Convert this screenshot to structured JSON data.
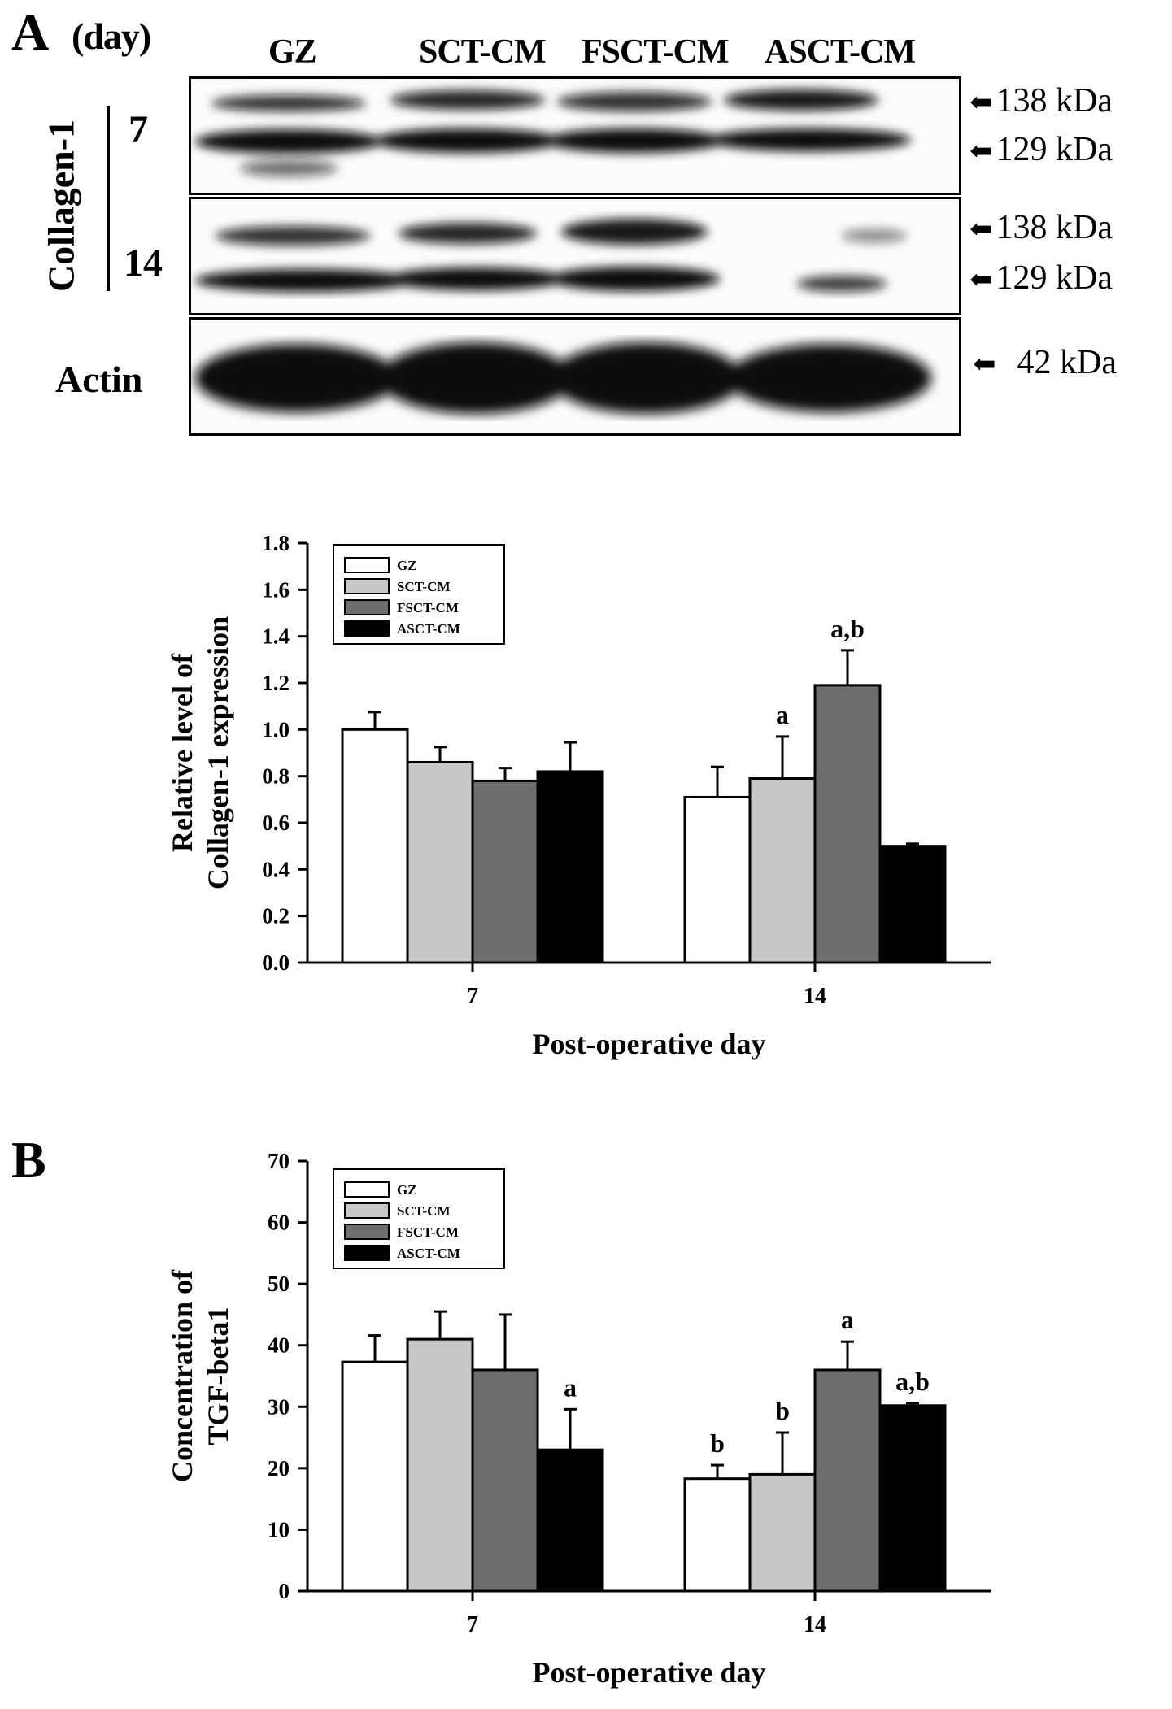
{
  "figure": {
    "panel_a_letter": "A",
    "panel_b_letter": "B",
    "day_header": "(day)",
    "lanes": [
      "GZ",
      "SCT-CM",
      "FSCT-CM",
      "ASCT-CM"
    ],
    "protein_label": "Collagen-1",
    "day_labels": [
      "7",
      "14"
    ],
    "actin_label": "Actin",
    "markers": {
      "m138": "138 kDa",
      "m129": "129 kDa",
      "m42": "42 kDa"
    }
  },
  "chart_data": [
    {
      "type": "bar",
      "categories": [
        "7",
        "14"
      ],
      "series": [
        {
          "name": "GZ",
          "color": "#ffffff",
          "values": [
            1.0,
            0.71
          ],
          "errors": [
            0.075,
            0.13
          ]
        },
        {
          "name": "SCT-CM",
          "color": "#c8c8c8",
          "values": [
            0.86,
            0.79
          ],
          "errors": [
            0.065,
            0.18
          ]
        },
        {
          "name": "FSCT-CM",
          "color": "#6e6e6e",
          "values": [
            0.78,
            1.19
          ],
          "errors": [
            0.055,
            0.15
          ]
        },
        {
          "name": "ASCT-CM",
          "color": "#000000",
          "values": [
            0.82,
            0.5
          ],
          "errors": [
            0.125,
            0.01
          ]
        }
      ],
      "annotations": [
        {
          "category": "14",
          "series": "SCT-CM",
          "text": "a"
        },
        {
          "category": "14",
          "series": "FSCT-CM",
          "text": "a,b"
        }
      ],
      "xlabel": "Post-operative day",
      "ylabel": [
        "Relative level of",
        "Collagen-1 expression"
      ],
      "ylim": [
        0,
        1.8
      ],
      "yticks": [
        "0.0",
        "0.2",
        "0.4",
        "0.6",
        "0.8",
        "1.0",
        "1.2",
        "1.4",
        "1.6",
        "1.8"
      ],
      "legend_position": "top-left"
    },
    {
      "type": "bar",
      "categories": [
        "7",
        "14"
      ],
      "series": [
        {
          "name": "GZ",
          "color": "#ffffff",
          "values": [
            37.3,
            18.3
          ],
          "errors": [
            4.3,
            2.2
          ]
        },
        {
          "name": "SCT-CM",
          "color": "#c8c8c8",
          "values": [
            41.0,
            19.0
          ],
          "errors": [
            4.5,
            6.8
          ]
        },
        {
          "name": "FSCT-CM",
          "color": "#6e6e6e",
          "values": [
            36.0,
            36.0
          ],
          "errors": [
            9.0,
            4.6
          ]
        },
        {
          "name": "ASCT-CM",
          "color": "#000000",
          "values": [
            23.0,
            30.2
          ],
          "errors": [
            6.6,
            0.4
          ]
        }
      ],
      "annotations": [
        {
          "category": "7",
          "series": "ASCT-CM",
          "text": "a"
        },
        {
          "category": "14",
          "series": "GZ",
          "text": "b"
        },
        {
          "category": "14",
          "series": "SCT-CM",
          "text": "b"
        },
        {
          "category": "14",
          "series": "FSCT-CM",
          "text": "a"
        },
        {
          "category": "14",
          "series": "ASCT-CM",
          "text": "a,b"
        }
      ],
      "xlabel": "Post-operative day",
      "ylabel": [
        "Concentration of",
        "TGF-beta1"
      ],
      "ylim": [
        0,
        70
      ],
      "yticks": [
        "0",
        "10",
        "20",
        "30",
        "40",
        "50",
        "60",
        "70"
      ],
      "legend_position": "top-left"
    }
  ]
}
